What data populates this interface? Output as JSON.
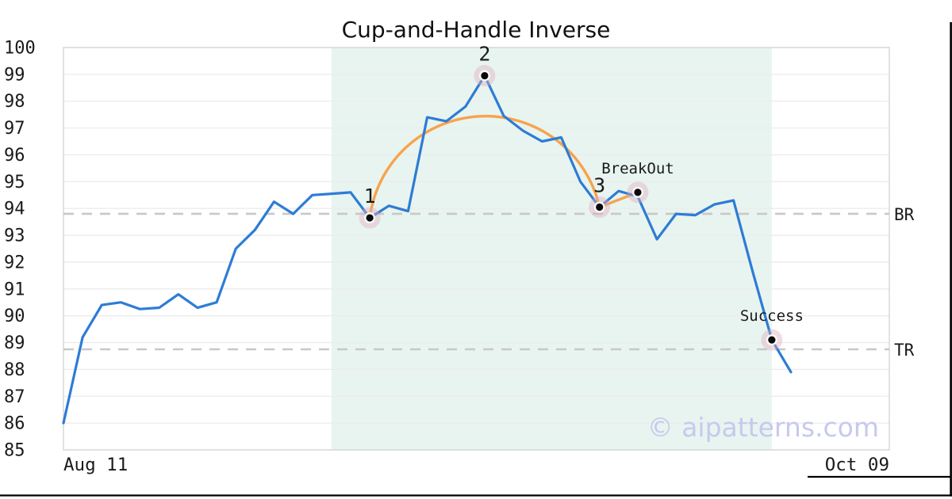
{
  "watermark": "© aipatterns.com",
  "chart_data": {
    "type": "line",
    "title": "Cup-and-Handle Inverse",
    "ylim": [
      85,
      100
    ],
    "y_ticks": [
      100,
      99,
      98,
      97,
      96,
      95,
      94,
      93,
      92,
      91,
      90,
      89,
      88,
      87,
      86,
      85
    ],
    "x_tick_labels": [
      "Aug 11",
      "Oct 09"
    ],
    "grid": "horizontal",
    "legend": "none",
    "series": [
      {
        "name": "price",
        "values": [
          86.0,
          89.2,
          90.4,
          90.5,
          90.25,
          90.3,
          90.8,
          90.3,
          90.5,
          92.5,
          93.2,
          94.25,
          93.8,
          94.5,
          94.55,
          94.6,
          93.65,
          94.1,
          93.9,
          97.4,
          97.25,
          97.8,
          98.95,
          97.45,
          96.9,
          96.5,
          96.65,
          95.0,
          94.05,
          94.65,
          94.45,
          92.85,
          93.8,
          93.75,
          94.15,
          94.3,
          91.65,
          89.1,
          87.9
        ]
      }
    ],
    "pattern_overlay": {
      "name": "inverted-cup-arc-with-handle",
      "arc_points": [
        {
          "label": "1",
          "index": 16,
          "value": 93.65
        },
        {
          "label": "2",
          "index": 22,
          "value": 98.95
        },
        {
          "label": "3",
          "index": 28,
          "value": 94.05
        }
      ],
      "handle_end": {
        "label": "BreakOut",
        "index": 30,
        "value": 94.6
      }
    },
    "markers": [
      {
        "label": "1",
        "index": 16,
        "value": 93.65
      },
      {
        "label": "2",
        "index": 22,
        "value": 98.95
      },
      {
        "label": "3",
        "index": 28,
        "value": 94.05
      },
      {
        "label": "BreakOut",
        "index": 30,
        "value": 94.6
      },
      {
        "label": "Success",
        "index": 37,
        "value": 89.1
      }
    ],
    "levels": [
      {
        "label": "BR",
        "value": 93.8
      },
      {
        "label": "TR",
        "value": 88.75
      }
    ],
    "shaded_region": {
      "from_index": 14,
      "to_index": 37
    },
    "colors": {
      "line": "#2d7cd6",
      "pattern": "#f7a34c",
      "shade": "#e8f4ef",
      "level_dash": "#c8c8c8",
      "grid": "#ececec",
      "border": "#d8d8d8",
      "halo": "rgba(222,172,188,0.42)",
      "halo_core": "rgba(255,255,255,0.9)",
      "dot": "#0a0a0a",
      "text": "#1a1a1a",
      "watermark": "#c6c9ef",
      "frame": "#000000"
    }
  }
}
